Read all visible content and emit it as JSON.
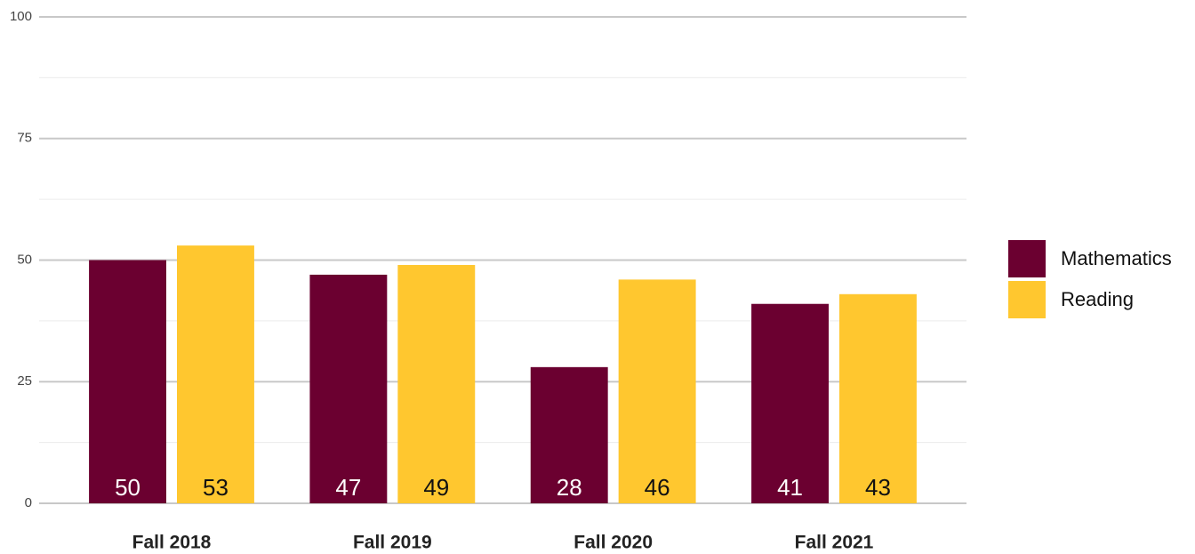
{
  "chart_data": {
    "type": "bar",
    "categories": [
      "Fall 2018",
      "Fall 2019",
      "Fall 2020",
      "Fall 2021"
    ],
    "series": [
      {
        "name": "Mathematics",
        "color": "#6b0030",
        "values": [
          50,
          47,
          28,
          41
        ]
      },
      {
        "name": "Reading",
        "color": "#ffc72f",
        "values": [
          53,
          49,
          46,
          43
        ]
      }
    ],
    "ylim": [
      0,
      100
    ],
    "yticks": [
      0,
      25,
      50,
      75,
      100
    ],
    "grid": true,
    "legend": "right"
  }
}
